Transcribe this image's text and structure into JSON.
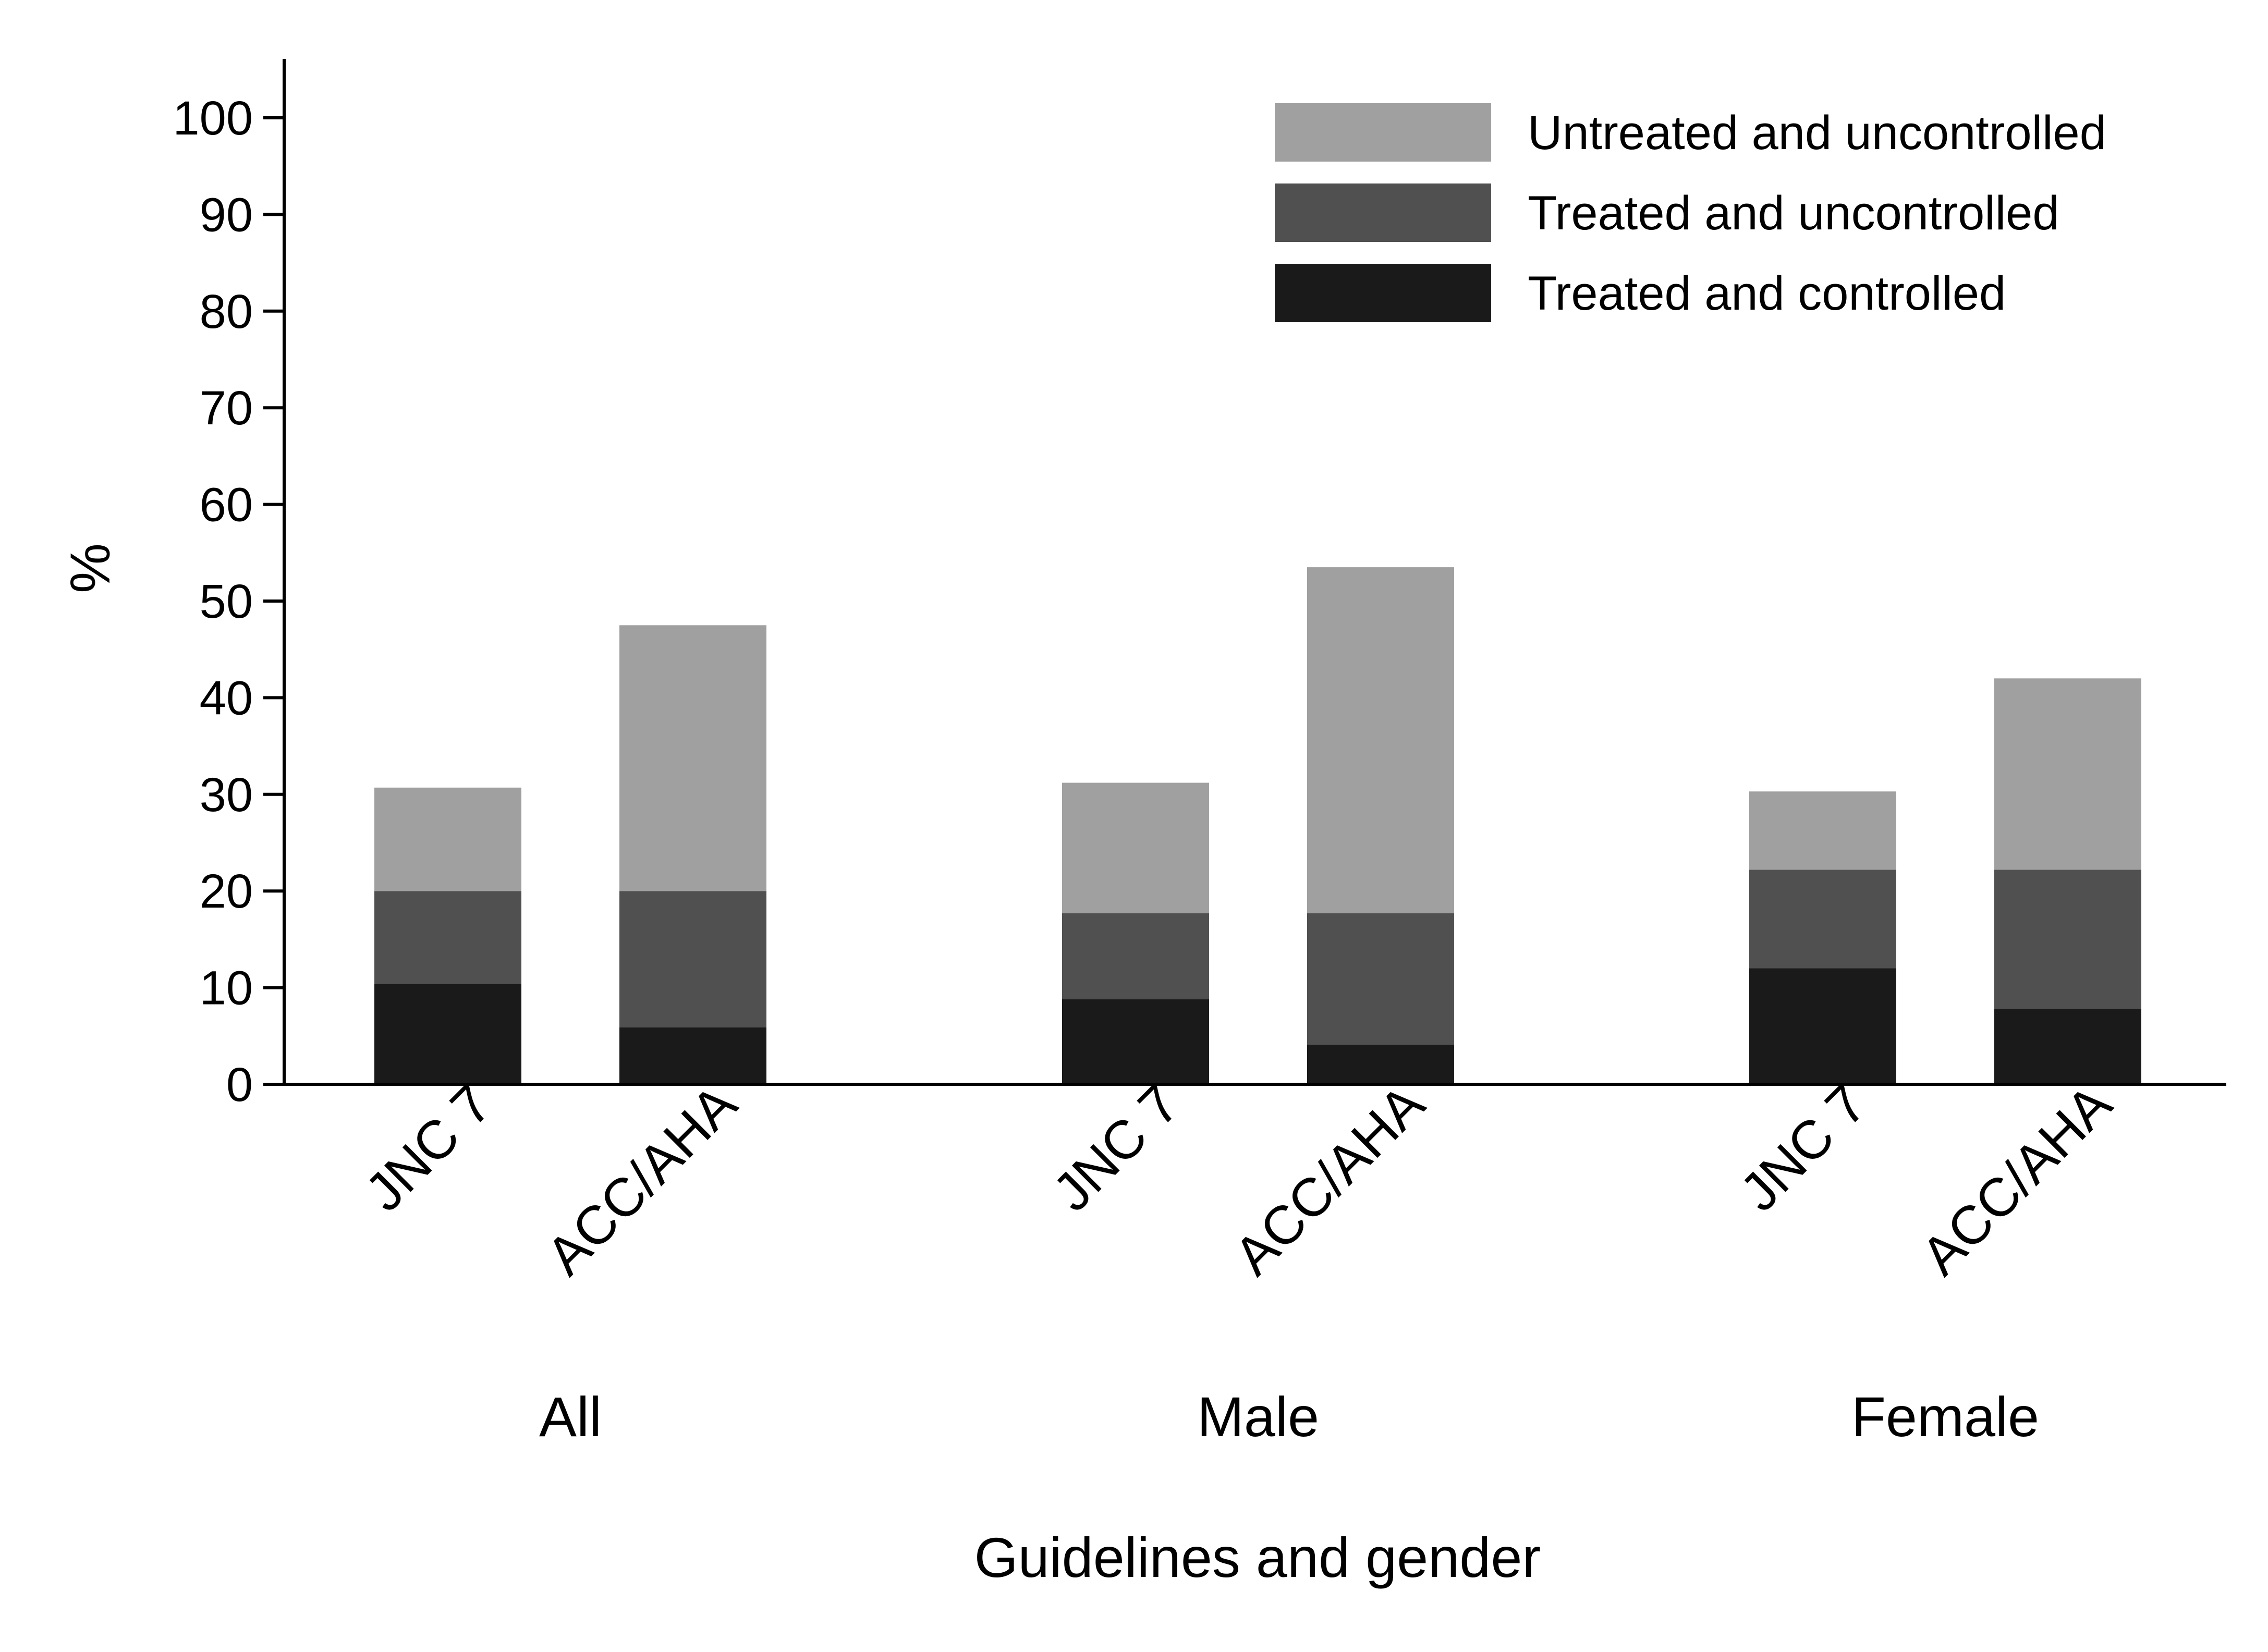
{
  "chart_data": {
    "type": "bar",
    "stacked": true,
    "title": "",
    "xlabel": "Guidelines and gender",
    "ylabel": "%",
    "ylim": [
      0,
      100
    ],
    "yticks": [
      0,
      10,
      20,
      30,
      40,
      50,
      60,
      70,
      80,
      90,
      100
    ],
    "grid": false,
    "legend_position": "top-right",
    "groups": [
      {
        "label": "All",
        "categories": [
          "JNC 7",
          "ACC/AHA"
        ]
      },
      {
        "label": "Male",
        "categories": [
          "JNC 7",
          "ACC/AHA"
        ]
      },
      {
        "label": "Female",
        "categories": [
          "JNC 7",
          "ACC/AHA"
        ]
      }
    ],
    "series": [
      {
        "name": "Treated and controlled",
        "color": "#1a1a1a",
        "values": [
          10.4,
          5.9,
          8.8,
          4.1,
          12.0,
          7.8
        ]
      },
      {
        "name": "Treated and uncontrolled",
        "color": "#505050",
        "values": [
          9.6,
          14.1,
          8.9,
          13.6,
          10.2,
          14.4
        ]
      },
      {
        "name": "Untreated and uncontrolled",
        "color": "#a0a0a0",
        "values": [
          10.7,
          27.5,
          13.5,
          35.8,
          8.1,
          19.8
        ]
      }
    ],
    "legend_order": [
      "Untreated and uncontrolled",
      "Treated and uncontrolled",
      "Treated and controlled"
    ]
  }
}
